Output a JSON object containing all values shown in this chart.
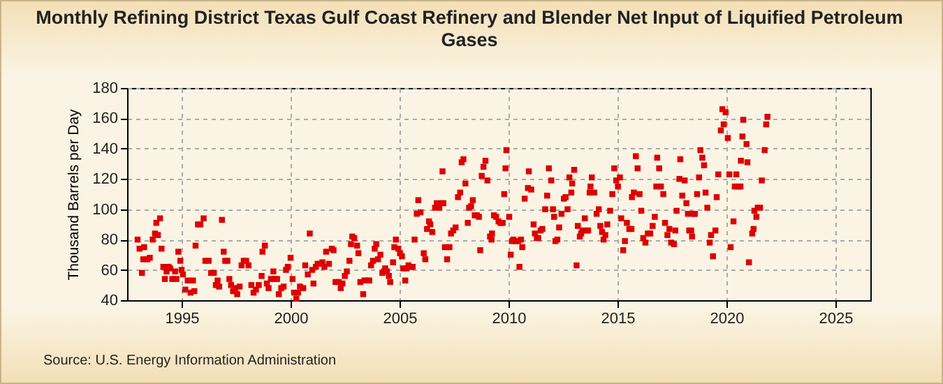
{
  "chart_data": {
    "type": "scatter",
    "title": "Monthly Refining District Texas Gulf Coast Refinery and Blender Net Input of Liquified Petroleum Gases",
    "ylabel": "Thousand Barrels per Day",
    "annotations": [
      "Source: U.S. Energy Information Administration"
    ],
    "xlim": [
      1992.5,
      2026.6
    ],
    "xticks": [
      1995,
      2000,
      2005,
      2010,
      2015,
      2020,
      2025
    ],
    "ylim": [
      40,
      180
    ],
    "yticks": [
      40,
      60,
      80,
      100,
      120,
      140,
      160,
      180
    ],
    "grid": true,
    "marker": "square",
    "series": [
      {
        "color": "#dd0000",
        "x": [
          1992.98,
          1993.07,
          1993.18,
          1993.24,
          1993.28,
          1993.43,
          1993.54,
          1993.67,
          1993.78,
          1993.84,
          1993.91,
          1994.01,
          1994.08,
          1994.16,
          1994.23,
          1994.31,
          1994.4,
          1994.48,
          1994.57,
          1994.7,
          1994.76,
          1994.85,
          1994.94,
          1995.0,
          1995.06,
          1995.17,
          1995.28,
          1995.41,
          1995.52,
          1995.58,
          1995.64,
          1995.75,
          1995.86,
          1996.01,
          1996.09,
          1996.24,
          1996.35,
          1996.48,
          1996.57,
          1996.65,
          1996.72,
          1996.85,
          1996.93,
          1997.0,
          1997.1,
          1997.19,
          1997.27,
          1997.36,
          1997.47,
          1997.55,
          1997.66,
          1997.75,
          1997.85,
          1997.96,
          1998.07,
          1998.2,
          1998.3,
          1998.41,
          1998.54,
          1998.67,
          1998.71,
          1998.82,
          1998.91,
          1998.99,
          1999.1,
          1999.21,
          1999.27,
          1999.38,
          1999.46,
          1999.57,
          1999.68,
          1999.79,
          1999.87,
          2000.0,
          2000.09,
          2000.17,
          2000.26,
          2000.34,
          2000.43,
          2000.58,
          2000.67,
          2000.79,
          2000.88,
          2000.99,
          2001.05,
          2001.16,
          2001.24,
          2001.35,
          2001.46,
          2001.55,
          2001.63,
          2001.76,
          2001.89,
          2001.97,
          2002.06,
          2002.21,
          2002.3,
          2002.38,
          2002.49,
          2002.58,
          2002.7,
          2002.77,
          2002.83,
          2002.92,
          2003.05,
          2003.11,
          2003.2,
          2003.33,
          2003.39,
          2003.5,
          2003.61,
          2003.69,
          2003.78,
          2003.86,
          2003.93,
          2004.01,
          2004.12,
          2004.21,
          2004.29,
          2004.34,
          2004.42,
          2004.51,
          2004.57,
          2004.7,
          2004.76,
          2004.83,
          2004.94,
          2005.02,
          2005.11,
          2005.17,
          2005.26,
          2005.32,
          2005.41,
          2005.51,
          2005.6,
          2005.69,
          2005.79,
          2005.86,
          2005.96,
          2006.11,
          2006.18,
          2006.26,
          2006.35,
          2006.41,
          2006.5,
          2006.63,
          2006.71,
          2006.82,
          2006.93,
          2006.97,
          2007.01,
          2007.08,
          2007.18,
          2007.29,
          2007.36,
          2007.46,
          2007.57,
          2007.68,
          2007.78,
          2007.85,
          2007.93,
          2008.02,
          2008.13,
          2008.19,
          2008.28,
          2008.36,
          2008.45,
          2008.55,
          2008.64,
          2008.7,
          2008.77,
          2008.85,
          2008.94,
          2009.03,
          2009.15,
          2009.22,
          2009.24,
          2009.33,
          2009.43,
          2009.54,
          2009.63,
          2009.73,
          2009.8,
          2009.86,
          2009.9,
          2010.03,
          2010.1,
          2010.16,
          2010.22,
          2010.33,
          2010.44,
          2010.5,
          2010.57,
          2010.63,
          2010.74,
          2010.89,
          2010.93,
          2011.04,
          2011.15,
          2011.21,
          2011.3,
          2011.36,
          2011.47,
          2011.55,
          2011.68,
          2011.77,
          2011.85,
          2011.96,
          2012.04,
          2012.09,
          2012.15,
          2012.24,
          2012.32,
          2012.43,
          2012.54,
          2012.62,
          2012.71,
          2012.79,
          2012.88,
          2012.92,
          2013.01,
          2013.12,
          2013.18,
          2013.27,
          2013.33,
          2013.39,
          2013.5,
          2013.57,
          2013.65,
          2013.72,
          2013.76,
          2013.82,
          2013.93,
          2014.04,
          2014.14,
          2014.21,
          2014.29,
          2014.36,
          2014.44,
          2014.53,
          2014.66,
          2014.76,
          2014.85,
          2014.94,
          2015.02,
          2015.11,
          2015.17,
          2015.26,
          2015.34,
          2015.43,
          2015.54,
          2015.64,
          2015.66,
          2015.75,
          2015.84,
          2015.92,
          2016.01,
          2016.09,
          2016.18,
          2016.28,
          2016.39,
          2016.5,
          2016.61,
          2016.71,
          2016.78,
          2016.82,
          2016.91,
          2016.99,
          2017.1,
          2017.18,
          2017.29,
          2017.38,
          2017.46,
          2017.59,
          2017.65,
          2017.71,
          2017.84,
          2017.88,
          2017.97,
          2018.08,
          2018.16,
          2018.23,
          2018.29,
          2018.38,
          2018.42,
          2018.5,
          2018.55,
          2018.65,
          2018.74,
          2018.8,
          2018.89,
          2018.97,
          2019.04,
          2019.12,
          2019.23,
          2019.29,
          2019.38,
          2019.49,
          2019.55,
          2019.62,
          2019.74,
          2019.81,
          2019.87,
          2019.96,
          2020.06,
          2020.13,
          2020.19,
          2020.32,
          2020.38,
          2020.45,
          2020.53,
          2020.64,
          2020.66,
          2020.73,
          2020.77,
          2020.92,
          2020.96,
          2021.03,
          2021.18,
          2021.24,
          2021.28,
          2021.37,
          2021.43,
          2021.54,
          2021.62,
          2021.75,
          2021.82,
          2021.88
        ],
        "values": [
          80,
          74,
          58,
          67,
          75,
          67,
          68,
          80,
          84,
          91,
          83,
          94,
          74,
          62,
          54,
          59,
          62,
          61,
          54,
          59,
          54,
          72,
          66,
          60,
          57,
          47,
          53,
          45,
          53,
          46,
          76,
          90,
          90,
          94,
          66,
          66,
          58,
          58,
          50,
          53,
          49,
          93,
          72,
          66,
          66,
          54,
          50,
          46,
          48,
          44,
          49,
          63,
          66,
          66,
          63,
          50,
          45,
          47,
          50,
          56,
          72,
          76,
          51,
          48,
          54,
          59,
          54,
          54,
          44,
          48,
          49,
          60,
          62,
          68,
          54,
          45,
          41,
          45,
          49,
          48,
          63,
          57,
          84,
          60,
          51,
          62,
          64,
          64,
          65,
          62,
          72,
          64,
          74,
          73,
          52,
          52,
          48,
          51,
          56,
          59,
          66,
          77,
          82,
          81,
          76,
          71,
          52,
          44,
          53,
          53,
          53,
          63,
          66,
          74,
          77,
          67,
          70,
          58,
          59,
          61,
          59,
          56,
          52,
          65,
          75,
          80,
          74,
          71,
          69,
          61,
          53,
          61,
          63,
          62,
          62,
          80,
          97,
          106,
          98,
          71,
          67,
          87,
          92,
          90,
          85,
          101,
          104,
          101,
          104,
          125,
          104,
          75,
          67,
          75,
          84,
          86,
          88,
          108,
          111,
          131,
          133,
          117,
          91,
          101,
          102,
          106,
          96,
          96,
          95,
          73,
          122,
          128,
          132,
          119,
          82,
          80,
          84,
          96,
          95,
          92,
          91,
          91,
          110,
          127,
          139,
          95,
          70,
          79,
          80,
          79,
          79,
          62,
          80,
          75,
          107,
          114,
          125,
          113,
          90,
          84,
          81,
          81,
          86,
          87,
          100,
          109,
          127,
          119,
          100,
          95,
          79,
          80,
          88,
          97,
          107,
          108,
          100,
          121,
          111,
          117,
          126,
          63,
          89,
          82,
          84,
          86,
          94,
          86,
          86,
          111,
          115,
          121,
          111,
          97,
          100,
          89,
          85,
          80,
          83,
          90,
          99,
          110,
          127,
          119,
          115,
          121,
          94,
          73,
          79,
          91,
          87,
          87,
          108,
          111,
          135,
          127,
          110,
          99,
          81,
          78,
          84,
          84,
          89,
          95,
          115,
          134,
          127,
          115,
          110,
          91,
          83,
          87,
          78,
          77,
          86,
          99,
          120,
          133,
          109,
          119,
          104,
          97,
          86,
          86,
          82,
          97,
          97,
          110,
          121,
          139,
          134,
          129,
          111,
          101,
          78,
          83,
          69,
          86,
          108,
          123,
          152,
          166,
          156,
          164,
          147,
          123,
          75,
          92,
          115,
          123,
          115,
          115,
          132,
          148,
          159,
          143,
          131,
          65,
          84,
          87,
          99,
          95,
          101,
          101,
          119,
          139,
          156,
          161
        ]
      }
    ]
  }
}
